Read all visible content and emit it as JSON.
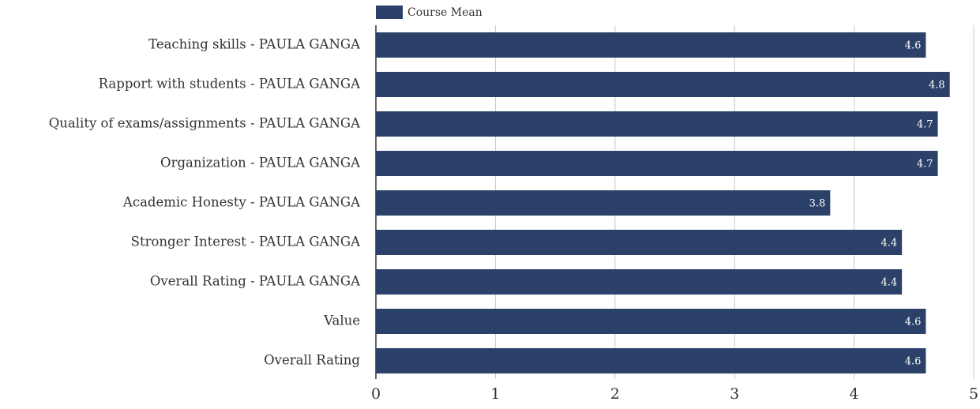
{
  "chart_data": {
    "type": "bar",
    "orientation": "horizontal",
    "categories": [
      "Teaching skills - PAULA GANGA",
      "Rapport with students - PAULA GANGA",
      "Quality of exams/assignments - PAULA GANGA",
      "Organization - PAULA GANGA",
      "Academic Honesty - PAULA GANGA",
      "Stronger Interest - PAULA GANGA",
      "Overall Rating - PAULA GANGA",
      "Value",
      "Overall Rating"
    ],
    "series": [
      {
        "name": "Course Mean",
        "color": "#2c4169",
        "values": [
          4.6,
          4.8,
          4.7,
          4.7,
          3.8,
          4.4,
          4.4,
          4.6,
          4.6
        ]
      }
    ],
    "xlim": [
      0,
      5
    ],
    "xticks": [
      0,
      1,
      2,
      3,
      4,
      5
    ],
    "grid": true,
    "legend": "top"
  }
}
